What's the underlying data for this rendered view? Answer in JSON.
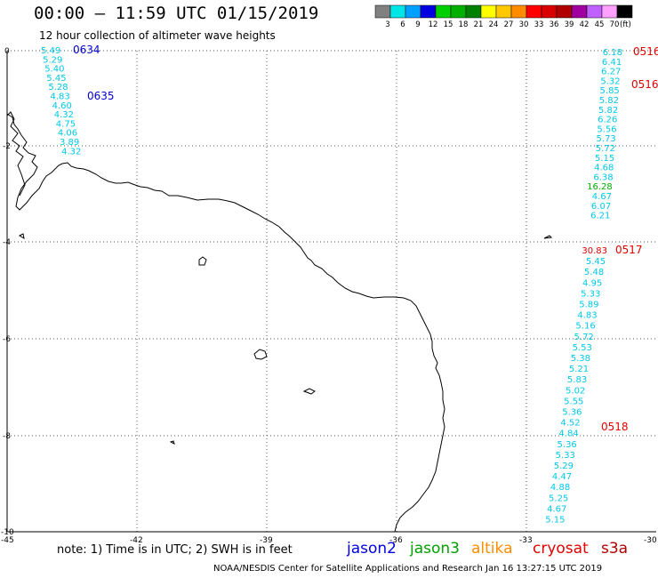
{
  "header": {
    "title": "00:00 – 11:59 UTC 01/15/2019",
    "subtitle": "12 hour collection of altimeter wave heights"
  },
  "legend": {
    "unit": "(ft)",
    "bins": [
      {
        "label": "3",
        "color": "#808080"
      },
      {
        "label": "6",
        "color": "#00e5e5"
      },
      {
        "label": "9",
        "color": "#00a0ff"
      },
      {
        "label": "12",
        "color": "#0000e0"
      },
      {
        "label": "15",
        "color": "#00d000"
      },
      {
        "label": "18",
        "color": "#00b000"
      },
      {
        "label": "21",
        "color": "#008000"
      },
      {
        "label": "24",
        "color": "#ffff00"
      },
      {
        "label": "27",
        "color": "#ffc800"
      },
      {
        "label": "30",
        "color": "#ff8c00"
      },
      {
        "label": "33",
        "color": "#ff0000"
      },
      {
        "label": "36",
        "color": "#d80000"
      },
      {
        "label": "39",
        "color": "#b00000"
      },
      {
        "label": "42",
        "color": "#a000a0"
      },
      {
        "label": "45",
        "color": "#c060ff"
      },
      {
        "label": "70",
        "color": "#ffa0ff"
      },
      {
        "label": "",
        "color": "#000000"
      }
    ]
  },
  "axes": {
    "lon_labels": [
      "-45",
      "-42",
      "-39",
      "-36",
      "-33",
      "-30"
    ],
    "lat_labels": [
      "0",
      "-2",
      "-4",
      "-6",
      "-8",
      "-10"
    ]
  },
  "tracks": [
    {
      "id": "jason2-left",
      "values": [
        {
          "v": "5.49",
          "c": "#00c8e6"
        },
        {
          "v": "5.29",
          "c": "#00c8e6"
        },
        {
          "v": "5.40",
          "c": "#00c8e6"
        },
        {
          "v": "5.45",
          "c": "#00c8e6"
        },
        {
          "v": "5.28",
          "c": "#00c8e6"
        },
        {
          "v": "4.83",
          "c": "#00c8e6"
        },
        {
          "v": "4.60",
          "c": "#00c8e6"
        },
        {
          "v": "4.32",
          "c": "#00c8e6"
        },
        {
          "v": "4.75",
          "c": "#00c8e6"
        },
        {
          "v": "4.06",
          "c": "#00c8e6"
        },
        {
          "v": "3.89",
          "c": "#00c8e6"
        },
        {
          "v": "4.32",
          "c": "#00c8e6"
        }
      ],
      "times": [
        {
          "t": "0634",
          "c": "#0000d0"
        },
        {
          "t": "0635",
          "c": "#0000d0"
        }
      ]
    },
    {
      "id": "cryosat-upper",
      "values": [
        {
          "v": "6.18",
          "c": "#00c8e6"
        },
        {
          "v": "6.41",
          "c": "#00c8e6"
        },
        {
          "v": "6.27",
          "c": "#00c8e6"
        },
        {
          "v": "5.32",
          "c": "#00c8e6"
        },
        {
          "v": "5.85",
          "c": "#00c8e6"
        },
        {
          "v": "5.82",
          "c": "#00c8e6"
        },
        {
          "v": "5.82",
          "c": "#00c8e6"
        },
        {
          "v": "6.26",
          "c": "#00c8e6"
        },
        {
          "v": "5.56",
          "c": "#00c8e6"
        },
        {
          "v": "5.73",
          "c": "#00c8e6"
        },
        {
          "v": "5.72",
          "c": "#00c8e6"
        },
        {
          "v": "5.15",
          "c": "#00c8e6"
        },
        {
          "v": "4.68",
          "c": "#00c8e6"
        },
        {
          "v": "6.38",
          "c": "#00c8e6"
        },
        {
          "v": "16.28",
          "c": "#00b000"
        },
        {
          "v": "4.67",
          "c": "#00c8e6"
        },
        {
          "v": "6.07",
          "c": "#00c8e6"
        },
        {
          "v": "6.21",
          "c": "#00c8e6"
        }
      ],
      "times": [
        {
          "t": "0516",
          "c": "#e00000"
        },
        {
          "t": "0516",
          "c": "#e00000"
        }
      ]
    },
    {
      "id": "cryosat-lower",
      "values": [
        {
          "v": "30.83",
          "c": "#e00000"
        },
        {
          "v": "5.45",
          "c": "#00c8e6"
        },
        {
          "v": "5.48",
          "c": "#00c8e6"
        },
        {
          "v": "4.95",
          "c": "#00c8e6"
        },
        {
          "v": "5.33",
          "c": "#00c8e6"
        },
        {
          "v": "5.89",
          "c": "#00c8e6"
        },
        {
          "v": "4.83",
          "c": "#00c8e6"
        },
        {
          "v": "5.16",
          "c": "#00c8e6"
        },
        {
          "v": "5.72",
          "c": "#00c8e6"
        },
        {
          "v": "5.53",
          "c": "#00c8e6"
        },
        {
          "v": "5.38",
          "c": "#00c8e6"
        },
        {
          "v": "5.21",
          "c": "#00c8e6"
        },
        {
          "v": "5.83",
          "c": "#00c8e6"
        },
        {
          "v": "5.02",
          "c": "#00c8e6"
        },
        {
          "v": "5.55",
          "c": "#00c8e6"
        },
        {
          "v": "5.36",
          "c": "#00c8e6"
        },
        {
          "v": "4.52",
          "c": "#00c8e6"
        },
        {
          "v": "4.84",
          "c": "#00c8e6"
        },
        {
          "v": "5.36",
          "c": "#00c8e6"
        },
        {
          "v": "5.33",
          "c": "#00c8e6"
        },
        {
          "v": "5.29",
          "c": "#00c8e6"
        },
        {
          "v": "4.47",
          "c": "#00c8e6"
        },
        {
          "v": "4.88",
          "c": "#00c8e6"
        },
        {
          "v": "5.25",
          "c": "#00c8e6"
        },
        {
          "v": "4.67",
          "c": "#00c8e6"
        },
        {
          "v": "5.15",
          "c": "#00c8e6"
        }
      ],
      "times": [
        {
          "t": "0517",
          "c": "#e00000"
        },
        {
          "t": "0518",
          "c": "#e00000"
        }
      ]
    }
  ],
  "footer": {
    "note": "note:  1) Time is in UTC;  2) SWH is in feet",
    "credit": "NOAA/NESDIS Center for Satellite Applications and Research    Jan 16 13:27:15 UTC 2019",
    "satellites": [
      {
        "label": "jason2",
        "color": "#0000e0"
      },
      {
        "label": "jason3",
        "color": "#00a000"
      },
      {
        "label": "altika",
        "color": "#ff8c00"
      },
      {
        "label": "cryosat",
        "color": "#e00000"
      },
      {
        "label": "s3a",
        "color": "#b00000"
      }
    ]
  }
}
